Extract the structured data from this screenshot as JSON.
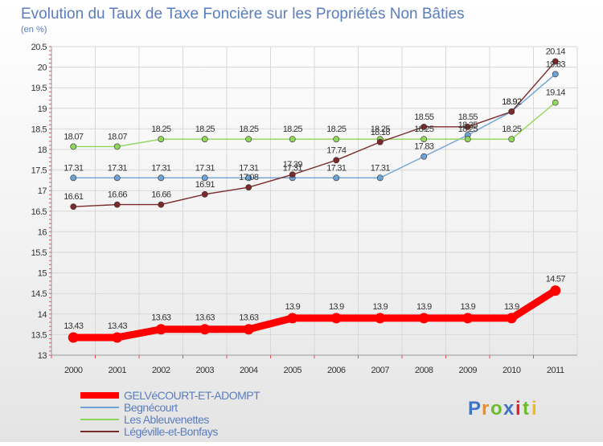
{
  "chart_data": {
    "type": "line",
    "title": "Evolution du Taux de Taxe Foncière sur les Propriétés Non Bâties",
    "subtitle": "(en %)",
    "x": [
      "2000",
      "2001",
      "2002",
      "2003",
      "2004",
      "2005",
      "2006",
      "2007",
      "2008",
      "2009",
      "2010",
      "2011"
    ],
    "ylim": [
      13,
      20.5
    ],
    "yticks": [
      "13",
      "13.5",
      "14",
      "14.5",
      "15",
      "15.5",
      "16",
      "16.5",
      "17",
      "17.5",
      "18",
      "18.5",
      "19",
      "19.5",
      "20",
      "20.5"
    ],
    "series": [
      {
        "name": "GELVéCOURT-ET-ADOMPT",
        "color": "#ff0000",
        "values": [
          13.43,
          13.43,
          13.63,
          13.63,
          13.63,
          13.9,
          13.9,
          13.9,
          13.9,
          13.9,
          13.9,
          14.57
        ],
        "labels": [
          "13.43",
          "13.43",
          "13.63",
          "13.63",
          "13.63",
          "13.9",
          "13.9",
          "13.9",
          "13.9",
          "13.9",
          "13.9",
          "14.57"
        ]
      },
      {
        "name": "Begnécourt",
        "color": "#6fa3d6",
        "values": [
          17.31,
          17.31,
          17.31,
          17.31,
          17.31,
          17.31,
          17.31,
          17.31,
          17.83,
          18.35,
          18.92,
          19.83
        ],
        "labels": [
          "17.31",
          "17.31",
          "17.31",
          "17.31",
          "17.31",
          "17.31",
          "17.31",
          "17.31",
          "17.83",
          "18.35",
          "18.92",
          "19.83"
        ]
      },
      {
        "name": "Les Ableuvenettes",
        "color": "#8fd65a",
        "values": [
          18.07,
          18.07,
          18.25,
          18.25,
          18.25,
          18.25,
          18.25,
          18.25,
          18.25,
          18.25,
          18.25,
          19.14
        ],
        "labels": [
          "18.07",
          "18.07",
          "18.25",
          "18.25",
          "18.25",
          "18.25",
          "18.25",
          "18.25",
          "18.25",
          "18.25",
          "18.25",
          "19.14"
        ]
      },
      {
        "name": "Légéville-et-Bonfays",
        "color": "#7a2a2a",
        "values": [
          16.61,
          16.66,
          16.66,
          16.91,
          17.08,
          17.39,
          17.74,
          18.18,
          18.55,
          18.55,
          18.92,
          20.14
        ],
        "labels": [
          "16.61",
          "16.66",
          "16.66",
          "16.91",
          "17.08",
          "17.39",
          "17.74",
          "18.18",
          "18.55",
          "18.55",
          "18.92",
          "20.14"
        ]
      }
    ],
    "legend_position": "bottom-left"
  },
  "logo": {
    "letters": [
      "P",
      "r",
      "o",
      "x",
      "i",
      "t",
      "i"
    ],
    "colors": [
      "#3f74c2",
      "#f28a1f",
      "#6dbb2e",
      "#3f74c2",
      "#e0202a",
      "#6dbb2e",
      "#f2b81f"
    ]
  }
}
